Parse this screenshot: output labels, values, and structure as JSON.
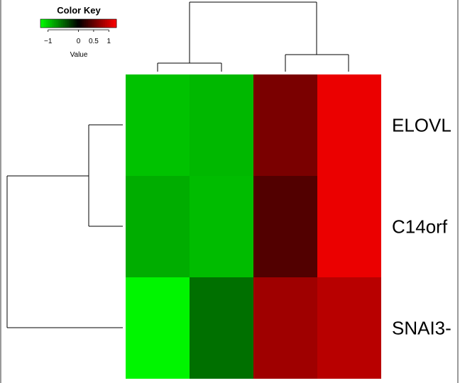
{
  "chart_data": {
    "type": "heatmap",
    "rows": [
      "ELOVL",
      "C14orf",
      "SNAI3-"
    ],
    "values": [
      [
        -0.95,
        -0.9,
        0.6,
        1.15
      ],
      [
        -0.85,
        -0.92,
        0.4,
        1.15
      ],
      [
        -1.2,
        -0.55,
        0.78,
        0.9
      ]
    ],
    "color_scale": {
      "low": "#00ff00",
      "mid": "#000000",
      "high": "#ff0000",
      "min": -1.25,
      "max": 1.25
    },
    "color_key": {
      "title": "Color Key",
      "xlabel": "Value",
      "ticks": [
        "−1",
        "0",
        "0.5",
        "1"
      ],
      "tick_values": [
        -1,
        0,
        0.5,
        1
      ]
    },
    "column_dendrogram": true,
    "row_dendrogram": true
  }
}
